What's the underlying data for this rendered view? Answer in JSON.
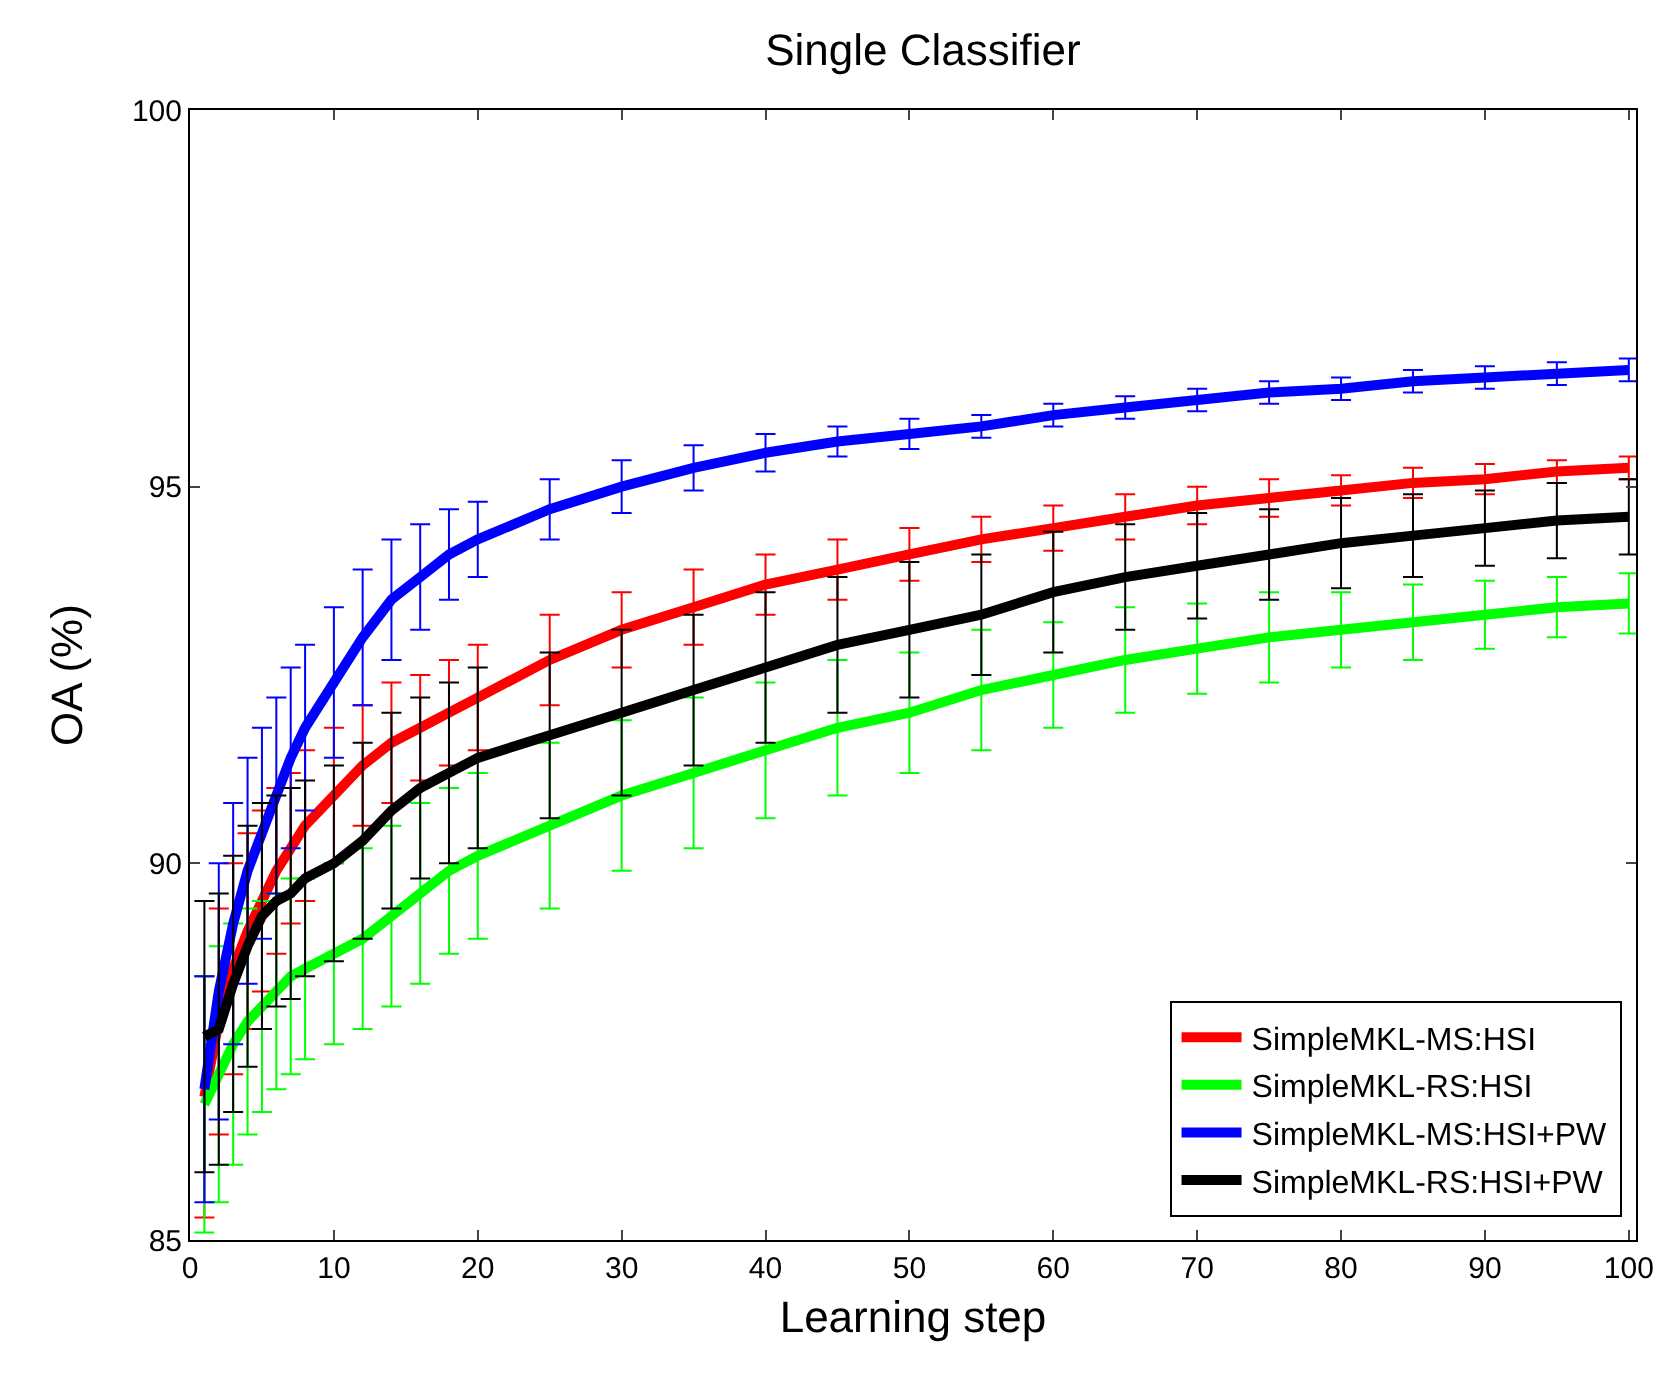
{
  "chart_data": {
    "type": "line",
    "title": "Single Classifier",
    "xlabel": "Learning step",
    "ylabel": "OA (%)",
    "x": [
      1,
      2,
      3,
      4,
      5,
      6,
      7,
      8,
      10,
      12,
      14,
      16,
      18,
      20,
      25,
      30,
      35,
      40,
      45,
      50,
      55,
      60,
      65,
      70,
      75,
      80,
      85,
      90,
      95,
      100
    ],
    "xlim": [
      0,
      100.5
    ],
    "ylim": [
      85,
      100
    ],
    "xticks": [
      0,
      10,
      20,
      30,
      40,
      50,
      60,
      70,
      80,
      90,
      100
    ],
    "yticks": [
      85,
      90,
      95,
      100
    ],
    "grid": false,
    "legend": "bottom right",
    "marker": "none",
    "line_style": "solid",
    "series": [
      {
        "name": "SimpleMKL-MS:HSI",
        "color": "#ff0000",
        "values": [
          86.9,
          87.9,
          88.6,
          89.1,
          89.5,
          89.9,
          90.2,
          90.5,
          90.9,
          91.3,
          91.6,
          91.8,
          92.0,
          92.2,
          92.7,
          93.1,
          93.4,
          93.7,
          93.9,
          94.1,
          94.3,
          94.45,
          94.6,
          94.75,
          94.85,
          94.95,
          95.05,
          95.1,
          95.2,
          95.25
        ],
        "errors": [
          1.6,
          1.5,
          1.4,
          1.3,
          1.2,
          1.1,
          1.0,
          1.0,
          0.9,
          0.8,
          0.8,
          0.7,
          0.7,
          0.7,
          0.6,
          0.5,
          0.5,
          0.4,
          0.4,
          0.35,
          0.3,
          0.3,
          0.3,
          0.25,
          0.25,
          0.2,
          0.2,
          0.2,
          0.15,
          0.15
        ]
      },
      {
        "name": "SimpleMKL-RS:HSI",
        "color": "#00ff00",
        "values": [
          86.8,
          87.2,
          87.6,
          87.9,
          88.1,
          88.3,
          88.5,
          88.6,
          88.8,
          89.0,
          89.3,
          89.6,
          89.9,
          90.1,
          90.5,
          90.9,
          91.2,
          91.5,
          91.8,
          92.0,
          92.3,
          92.5,
          92.7,
          92.85,
          93.0,
          93.1,
          93.2,
          93.3,
          93.4,
          93.45
        ],
        "errors": [
          1.7,
          1.7,
          1.6,
          1.5,
          1.4,
          1.3,
          1.3,
          1.2,
          1.2,
          1.2,
          1.2,
          1.2,
          1.1,
          1.1,
          1.1,
          1.0,
          1.0,
          0.9,
          0.9,
          0.8,
          0.8,
          0.7,
          0.7,
          0.6,
          0.6,
          0.5,
          0.5,
          0.45,
          0.4,
          0.4
        ]
      },
      {
        "name": "SimpleMKL-MS:HSI+PW",
        "color": "#0000ff",
        "values": [
          87.0,
          88.3,
          89.2,
          89.9,
          90.4,
          90.9,
          91.4,
          91.8,
          92.4,
          93.0,
          93.5,
          93.8,
          94.1,
          94.3,
          94.7,
          95.0,
          95.25,
          95.45,
          95.6,
          95.7,
          95.8,
          95.95,
          96.05,
          96.15,
          96.25,
          96.3,
          96.4,
          96.45,
          96.5,
          96.55
        ],
        "errors": [
          1.5,
          1.7,
          1.6,
          1.5,
          1.4,
          1.3,
          1.2,
          1.1,
          1.0,
          0.9,
          0.8,
          0.7,
          0.6,
          0.5,
          0.4,
          0.35,
          0.3,
          0.25,
          0.2,
          0.2,
          0.15,
          0.15,
          0.15,
          0.15,
          0.15,
          0.15,
          0.15,
          0.15,
          0.15,
          0.15
        ]
      },
      {
        "name": "SimpleMKL-RS:HSI+PW",
        "color": "#000000",
        "values": [
          87.7,
          87.8,
          88.4,
          88.9,
          89.3,
          89.5,
          89.6,
          89.8,
          90.0,
          90.3,
          90.7,
          91.0,
          91.2,
          91.4,
          91.7,
          92.0,
          92.3,
          92.6,
          92.9,
          93.1,
          93.3,
          93.6,
          93.8,
          93.95,
          94.1,
          94.25,
          94.35,
          94.45,
          94.55,
          94.6
        ],
        "errors": [
          1.8,
          1.8,
          1.7,
          1.6,
          1.5,
          1.4,
          1.4,
          1.3,
          1.3,
          1.3,
          1.3,
          1.2,
          1.2,
          1.2,
          1.1,
          1.1,
          1.0,
          1.0,
          0.9,
          0.9,
          0.8,
          0.8,
          0.7,
          0.7,
          0.6,
          0.6,
          0.55,
          0.5,
          0.5,
          0.5
        ]
      }
    ]
  }
}
